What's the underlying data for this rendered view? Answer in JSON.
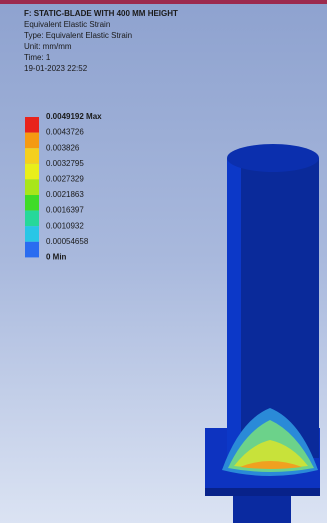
{
  "header": {
    "title": "F: STATIC-BLADE WITH 400 MM HEIGHT",
    "lines": [
      "Equivalent Elastic Strain",
      "Type: Equivalent Elastic Strain",
      "Unit: mm/mm",
      "Time: 1",
      "19-01-2023 22:52"
    ]
  },
  "legend": {
    "labels": [
      "0.0049192 Max",
      "0.0043726",
      "0.003826",
      "0.0032795",
      "0.0027329",
      "0.0021863",
      "0.0016397",
      "0.0010932",
      "0.00054658",
      "0 Min"
    ],
    "colors": [
      "#e8231c",
      "#f59a12",
      "#f5d01e",
      "#e9ef1a",
      "#a8e61a",
      "#3fdc27",
      "#26d89a",
      "#28c6e6",
      "#2a6cf0"
    ]
  }
}
